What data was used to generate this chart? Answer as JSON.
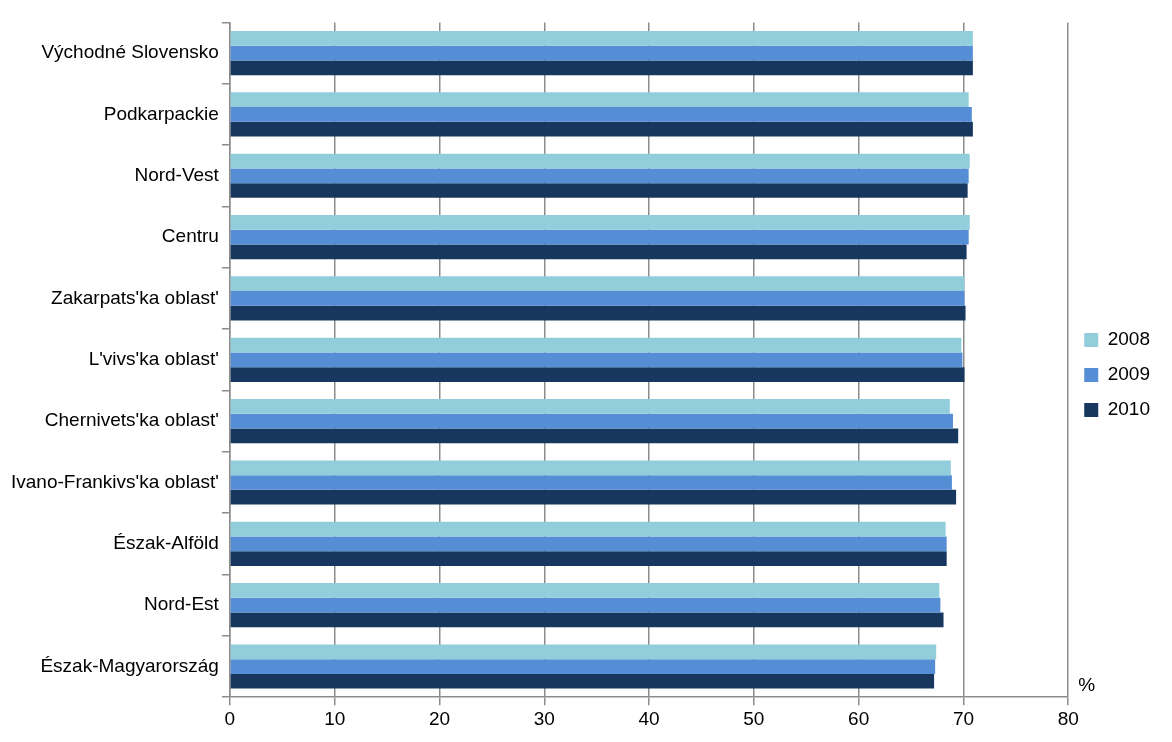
{
  "chart_data": {
    "type": "bar",
    "orientation": "horizontal",
    "categories": [
      "Východné Slovensko",
      "Podkarpackie",
      "Nord-Vest",
      "Centru",
      "Zakarpats'ka oblast'",
      "L'vivs'ka oblast'",
      "Chernivets'ka oblast'",
      "Ivano-Frankivs'ka oblast'",
      "Észak-Alföld",
      "Nord-Est",
      "Észak-Magyarország"
    ],
    "series": [
      {
        "name": "2008",
        "color": "#92cddc",
        "values": [
          70.9,
          70.5,
          70.6,
          70.6,
          70.1,
          69.8,
          68.7,
          68.8,
          68.3,
          67.7,
          67.4
        ]
      },
      {
        "name": "2009",
        "color": "#558ed5",
        "values": [
          70.9,
          70.8,
          70.5,
          70.5,
          70.1,
          69.9,
          69.0,
          68.9,
          68.4,
          67.8,
          67.3
        ]
      },
      {
        "name": "2010",
        "color": "#17375e",
        "values": [
          70.9,
          70.9,
          70.4,
          70.3,
          70.2,
          70.1,
          69.5,
          69.3,
          68.4,
          68.1,
          67.2
        ]
      }
    ],
    "xlim": [
      0,
      80
    ],
    "xticks": [
      0,
      10,
      20,
      30,
      40,
      50,
      60,
      70,
      80
    ],
    "grid": "x",
    "legend": "right",
    "annotations": [
      "%"
    ]
  }
}
